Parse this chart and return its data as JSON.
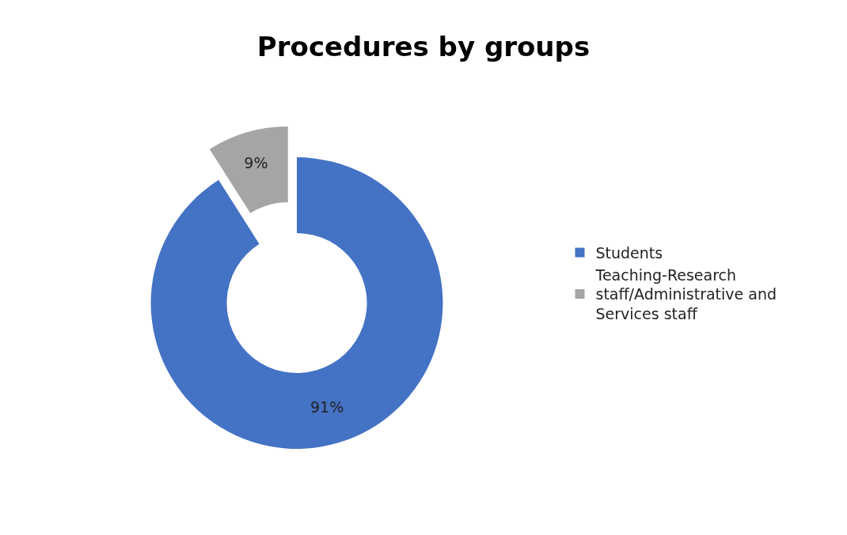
{
  "chart_data": {
    "type": "donut",
    "title": "Procedures by groups",
    "categories": [
      "Students",
      "Teaching-Research staff/Administrative and Services staff"
    ],
    "values": [
      91,
      9
    ],
    "colors": [
      "#4472c4",
      "#a5a5a5"
    ],
    "value_labels": [
      "91%",
      "9%"
    ],
    "legend": "right"
  }
}
